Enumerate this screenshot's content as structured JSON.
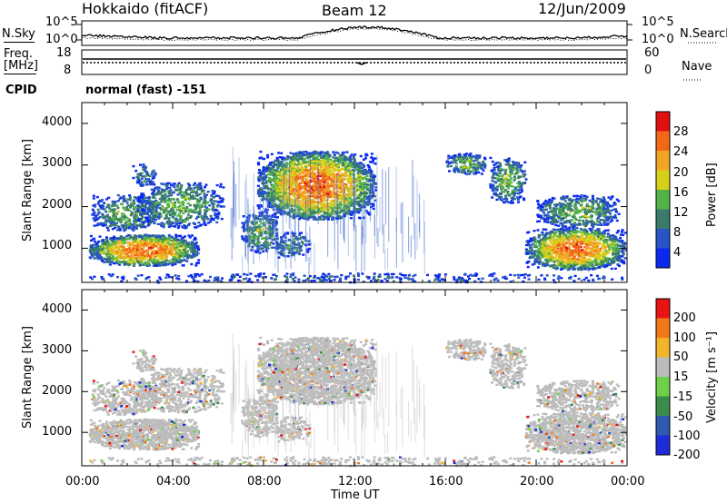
{
  "header": {
    "station": "Hokkaido (fitACF)",
    "beam": "Beam 12",
    "date": "12/Jun/2009"
  },
  "noise_panel": {
    "left_label": "N.Sky",
    "right_label": "N.Search",
    "left_ticks": [
      "10^5",
      "10^0"
    ],
    "right_ticks": [
      "10^5",
      "10^0"
    ]
  },
  "freq_panel": {
    "left_label_1": "Freq.",
    "left_label_2": "[MHz]",
    "right_label": "Nave",
    "left_ticks": [
      "18",
      "8"
    ],
    "right_ticks": [
      "60",
      "0"
    ],
    "cpid_label": "CPID",
    "cpid_value": "normal (fast) -151"
  },
  "power_panel": {
    "ylabel": "Slant Range [km]",
    "yticks": [
      "4000",
      "3000",
      "2000",
      "1000"
    ],
    "colorbar_label": "Power [dB]",
    "colorbar_ticks": [
      "28",
      "24",
      "20",
      "16",
      "12",
      "8",
      "4"
    ],
    "colors": [
      "#0a28f0",
      "#2854c8",
      "#3a7a6a",
      "#52b24a",
      "#d8d018",
      "#f2a424",
      "#f06818",
      "#e01010"
    ]
  },
  "velocity_panel": {
    "ylabel": "Slant Range [km]",
    "yticks": [
      "4000",
      "3000",
      "2000",
      "1000"
    ],
    "colorbar_label": "Velocity [m s⁻¹]",
    "colorbar_ticks": [
      "200",
      "100",
      "50",
      "15",
      "-15",
      "-50",
      "-100",
      "-200"
    ],
    "colors": [
      "#1e2cd8",
      "#2e5ab0",
      "#3c8c4c",
      "#6ed048",
      "#bcbcbc",
      "#f2b428",
      "#f07818",
      "#e81414"
    ]
  },
  "time_axis": {
    "ticks": [
      "00:00",
      "04:00",
      "08:00",
      "12:00",
      "16:00",
      "20:00",
      "00:00"
    ],
    "xlabel": "Time UT"
  },
  "chart_data": {
    "type": "heatmap",
    "title": "Hokkaido (fitACF) Beam 12 12/Jun/2009",
    "xlabel": "Time UT",
    "ylabel": "Slant Range [km]",
    "xlim_hours": [
      0,
      24
    ],
    "ylim_km": [
      180,
      4500
    ],
    "scatter_regions_approx": [
      {
        "time_hours": [
          0.2,
          5.1
        ],
        "range_km": [
          600,
          1400
        ],
        "peak_power_db": 28,
        "velocity": "-15 to 15"
      },
      {
        "time_hours": [
          0.3,
          6.3
        ],
        "range_km": [
          1400,
          2600
        ],
        "peak_power_db": 16,
        "velocity": "-15 to 15"
      },
      {
        "time_hours": [
          7.7,
          12.9
        ],
        "range_km": [
          1700,
          3300
        ],
        "peak_power_db": 28,
        "velocity": "-15 to 15"
      },
      {
        "time_hours": [
          7.2,
          10.0
        ],
        "range_km": [
          600,
          1600
        ],
        "peak_power_db": 16,
        "velocity": "-15 to 15"
      },
      {
        "time_hours": [
          16.0,
          19.5
        ],
        "range_km": [
          2000,
          3300
        ],
        "peak_power_db": 16,
        "velocity": "-15 to 15"
      },
      {
        "time_hours": [
          19.4,
          23.9
        ],
        "range_km": [
          400,
          2300
        ],
        "peak_power_db": 28,
        "velocity": "-15 to 15"
      }
    ]
  }
}
